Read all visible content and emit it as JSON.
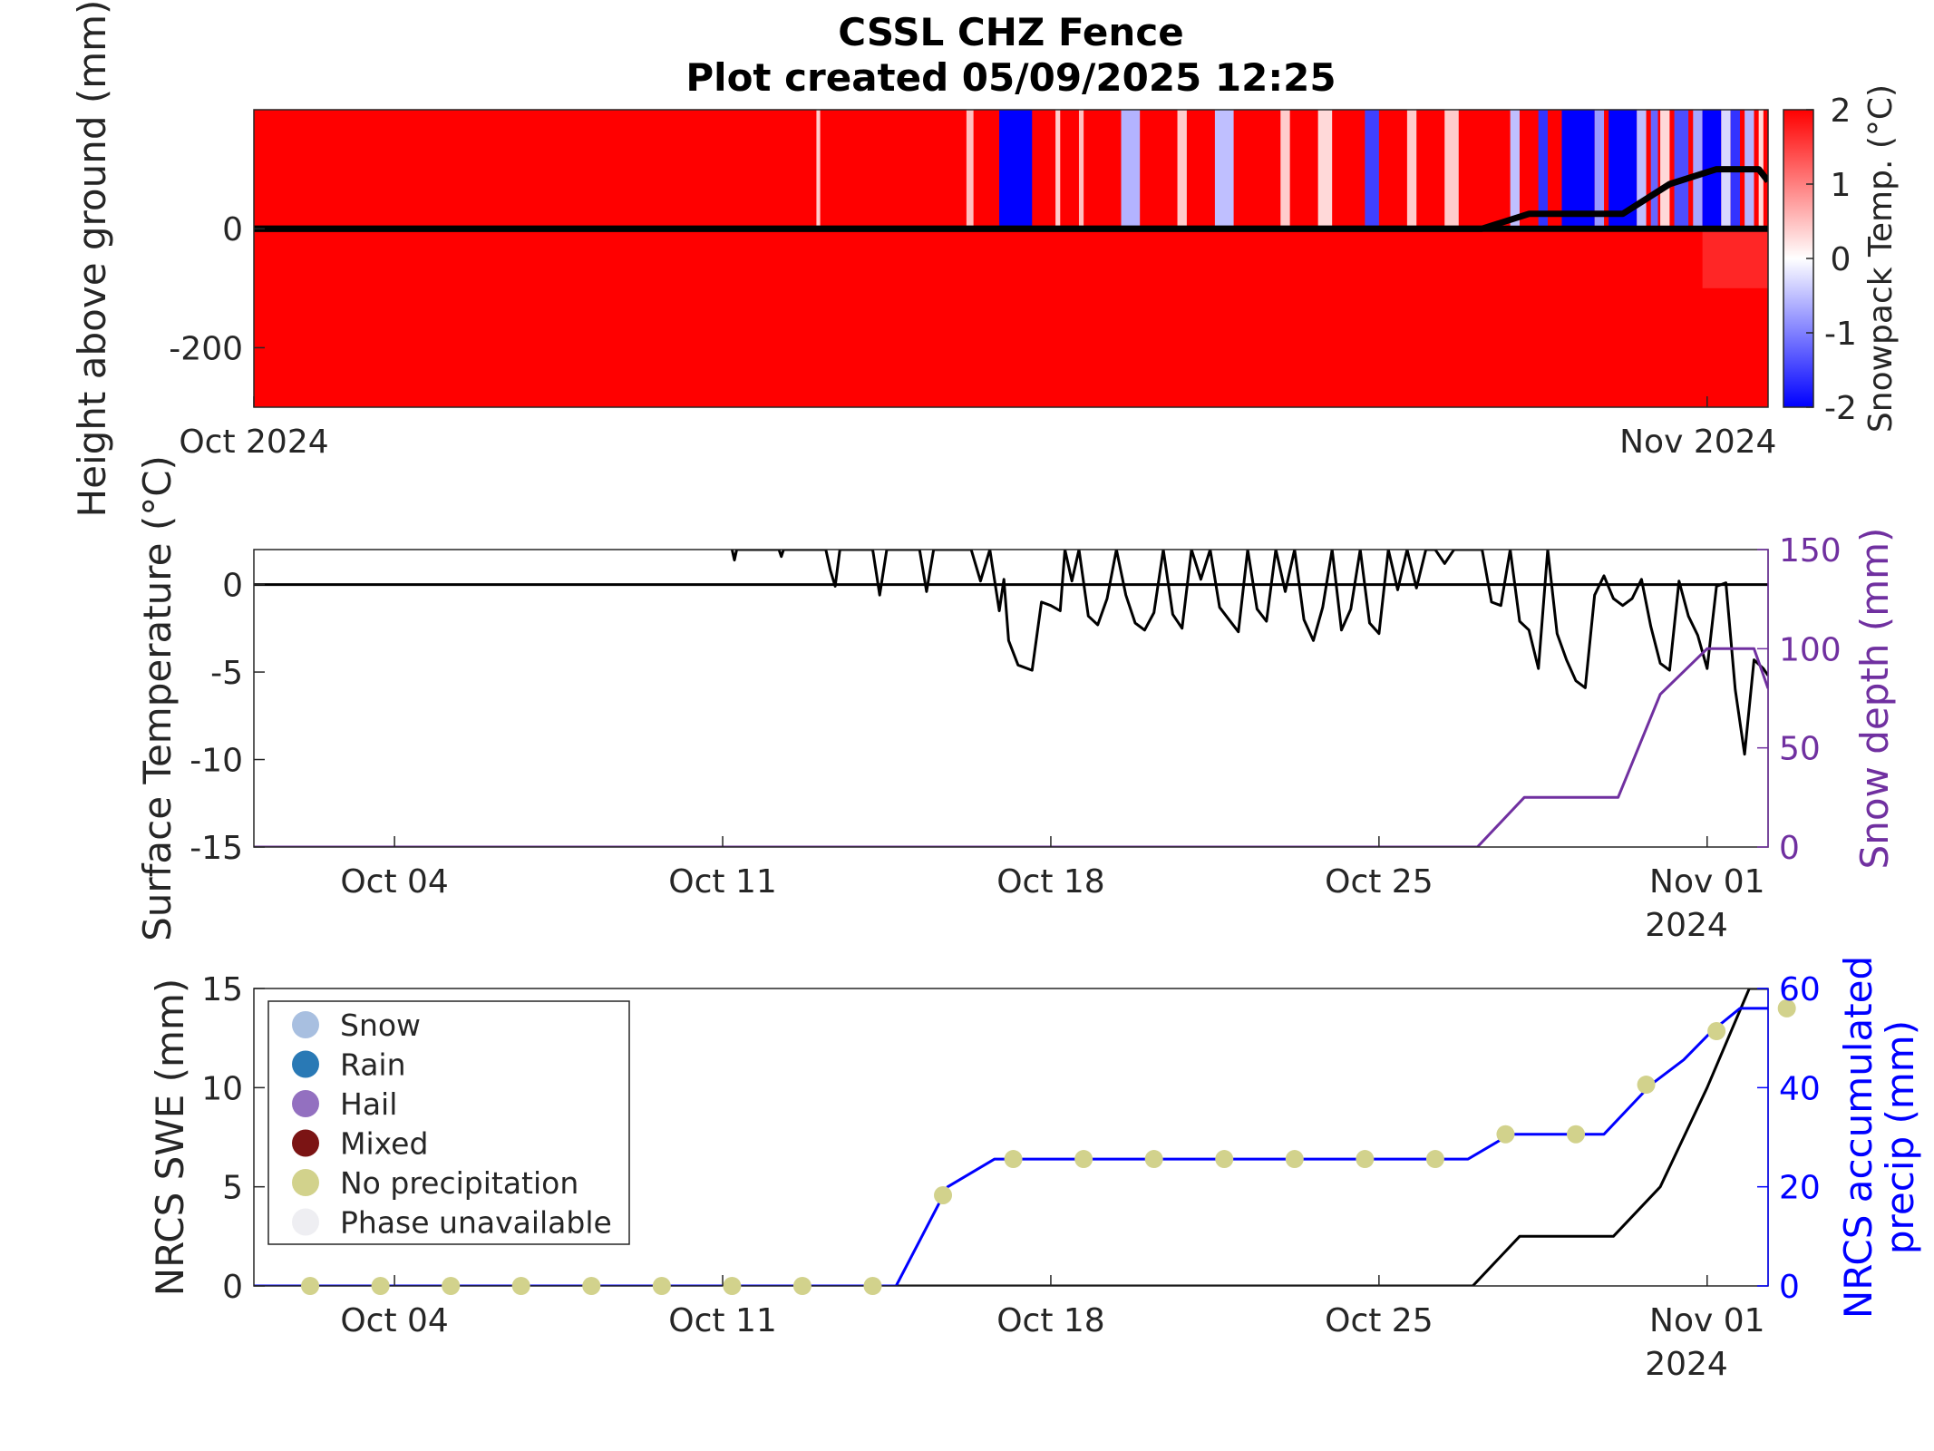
{
  "title": [
    "CSSL CHZ Fence",
    "Plot created 05/09/2025 12:25"
  ],
  "colors": {
    "warm": "#ff0000",
    "cold": "#0000ff",
    "surface_temp": "#000000",
    "snow_depth": "#7030a0",
    "precip": "#0000ff",
    "swe": "#000000",
    "no_precip_marker": "#d2d28c",
    "snow": "#a8bfe0",
    "rain": "#2979b5",
    "hail": "#9370c0",
    "mixed": "#7b1414",
    "phase_unavailable": "#eeeef2"
  },
  "chart_data": [
    {
      "type": "heatmap",
      "ylabel": "Height above ground (mm)",
      "colorbar_label": "Snowpack Temp. (°C)",
      "colorbar_ticks": [
        "2",
        "1",
        "0",
        "-1",
        "-2"
      ],
      "clim": [
        -2,
        2
      ],
      "colormap": [
        "#0000ff",
        "#ffffff",
        "#ff0000"
      ],
      "ylim": [
        -300,
        200
      ],
      "yticks": [
        {
          "v": 0,
          "label": "0"
        },
        {
          "v": -200,
          "label": "-200"
        }
      ],
      "xlim": [
        1,
        33.3
      ],
      "xticks": [
        {
          "v": 1,
          "label": "Oct 2024"
        },
        {
          "v": 32,
          "label": "Nov 2024"
        }
      ],
      "cold_bands": [
        {
          "x0": 13.0,
          "x1": 13.08,
          "t": 0.4
        },
        {
          "x0": 16.2,
          "x1": 16.35,
          "t": 0.5
        },
        {
          "x0": 16.9,
          "x1": 17.6,
          "t": -2
        },
        {
          "x0": 18.1,
          "x1": 18.2,
          "t": 0.4
        },
        {
          "x0": 18.6,
          "x1": 18.7,
          "t": 0.5
        },
        {
          "x0": 19.5,
          "x1": 19.9,
          "t": -0.6
        },
        {
          "x0": 20.7,
          "x1": 20.9,
          "t": 0.4
        },
        {
          "x0": 21.5,
          "x1": 21.9,
          "t": -0.5
        },
        {
          "x0": 22.9,
          "x1": 23.1,
          "t": 0.4
        },
        {
          "x0": 23.7,
          "x1": 24.0,
          "t": 0.3
        },
        {
          "x0": 24.7,
          "x1": 25.0,
          "t": -1.5
        },
        {
          "x0": 25.6,
          "x1": 25.8,
          "t": 0.4
        },
        {
          "x0": 26.4,
          "x1": 26.7,
          "t": 0.4
        },
        {
          "x0": 27.8,
          "x1": 28.0,
          "t": -0.5
        },
        {
          "x0": 28.4,
          "x1": 28.6,
          "t": -1.6
        },
        {
          "x0": 28.9,
          "x1": 29.6,
          "t": -2
        },
        {
          "x0": 29.6,
          "x1": 29.8,
          "t": -0.8
        },
        {
          "x0": 29.9,
          "x1": 30.5,
          "t": -2
        },
        {
          "x0": 30.5,
          "x1": 30.7,
          "t": -0.5
        },
        {
          "x0": 30.8,
          "x1": 30.95,
          "t": -1.2
        },
        {
          "x0": 31.0,
          "x1": 31.2,
          "t": 0.3
        },
        {
          "x0": 31.3,
          "x1": 31.6,
          "t": -1.4
        },
        {
          "x0": 31.7,
          "x1": 31.9,
          "t": -0.7
        },
        {
          "x0": 31.9,
          "x1": 32.3,
          "t": -2
        },
        {
          "x0": 32.3,
          "x1": 32.5,
          "t": -0.3
        },
        {
          "x0": 32.5,
          "x1": 32.7,
          "t": -1.6
        },
        {
          "x0": 32.8,
          "x1": 33.0,
          "t": -0.6
        },
        {
          "x0": 33.1,
          "x1": 33.2,
          "t": 0.3
        }
      ],
      "snow_depth_line": {
        "x": [
          1,
          27.2,
          28.2,
          30.2,
          31.2,
          32.2,
          33.1,
          33.3
        ],
        "y": [
          0,
          0,
          25,
          25,
          75,
          100,
          100,
          80
        ]
      }
    },
    {
      "type": "line",
      "ylabel": "Surface Temperature (°C)",
      "y2label": "Snow depth (mm)",
      "ylim": [
        -15,
        2
      ],
      "yticks": [
        "0",
        "-5",
        "-10",
        "-15"
      ],
      "y2lim": [
        0,
        150
      ],
      "y2ticks": [
        "150",
        "100",
        "50",
        "0"
      ],
      "xlim": [
        1,
        33.3
      ],
      "xticks": [
        {
          "v": 4,
          "label": "Oct 04"
        },
        {
          "v": 11,
          "label": "Oct 11"
        },
        {
          "v": 18,
          "label": "Oct 18"
        },
        {
          "v": 25,
          "label": "Oct 25"
        },
        {
          "v": 32,
          "label": "Nov 01"
        }
      ],
      "xtick_year": "2024",
      "series": [
        {
          "x": [
            11.2,
            11.25,
            11.3,
            12.2,
            12.25,
            12.3,
            13.2,
            13.3,
            13.4,
            13.5,
            14.2,
            14.35,
            14.5,
            15.2,
            15.35,
            15.5,
            16.3,
            16.5,
            16.7,
            16.9,
            17.0,
            17.1,
            17.3,
            17.6,
            17.8,
            18.0,
            18.2,
            18.3,
            18.45,
            18.6,
            18.8,
            19.0,
            19.2,
            19.4,
            19.6,
            19.8,
            20.0,
            20.2,
            20.4,
            20.6,
            20.8,
            21.0,
            21.2,
            21.4,
            21.6,
            21.8,
            22.0,
            22.2,
            22.4,
            22.6,
            22.8,
            23.0,
            23.2,
            23.4,
            23.6,
            23.8,
            24.0,
            24.2,
            24.4,
            24.6,
            24.8,
            25.0,
            25.2,
            25.4,
            25.6,
            25.8,
            26.0,
            26.2,
            26.4,
            26.6,
            26.8,
            27.0,
            27.2,
            27.4,
            27.6,
            27.8,
            28.0,
            28.2,
            28.4,
            28.6,
            28.8,
            29.0,
            29.2,
            29.4,
            29.6,
            29.8,
            30.0,
            30.2,
            30.4,
            30.6,
            30.8,
            31.0,
            31.2,
            31.4,
            31.6,
            31.8,
            32.0,
            32.2,
            32.4,
            32.6,
            32.8,
            33.0,
            33.2,
            33.3
          ],
          "y": [
            2,
            1.4,
            2,
            2,
            1.6,
            2,
            2,
            0.8,
            -0.1,
            2,
            2,
            -0.6,
            2,
            2,
            -0.4,
            2,
            2,
            0.2,
            2,
            -1.5,
            0.3,
            -3.2,
            -4.6,
            -4.9,
            -1.0,
            -1.2,
            -1.5,
            2,
            0.2,
            2,
            -1.8,
            -2.3,
            -0.8,
            2,
            -0.6,
            -2.2,
            -2.6,
            -1.6,
            2,
            -1.7,
            -2.5,
            2,
            0.3,
            2,
            -1.3,
            -2.0,
            -2.7,
            2,
            -1.4,
            -2.1,
            2,
            -0.4,
            2,
            -2.0,
            -3.2,
            -1.3,
            2,
            -2.6,
            -1.4,
            2,
            -2.2,
            -2.8,
            2,
            -0.3,
            2,
            -0.2,
            2,
            2,
            1.2,
            2,
            2,
            2,
            2,
            -1.0,
            -1.2,
            2,
            -2.1,
            -2.6,
            -4.8,
            2,
            -2.8,
            -4.3,
            -5.5,
            -5.9,
            -0.6,
            0.5,
            -0.8,
            -1.2,
            -0.8,
            0.3,
            -2.4,
            -4.5,
            -4.9,
            0.2,
            -1.8,
            -2.9,
            -4.8,
            -0.1,
            0.1,
            -6.0,
            -9.7,
            -4.3,
            -4.8,
            -5.2
          ]
        },
        {
          "axis": "right",
          "x": [
            1,
            27.1,
            28.1,
            30.1,
            31.0,
            32.0,
            33.0,
            33.3
          ],
          "y": [
            0,
            0,
            25,
            25,
            77,
            100,
            100,
            80
          ]
        }
      ]
    },
    {
      "type": "line",
      "ylabel": "NRCS SWE (mm)",
      "y2label": [
        "NRCS accumulated",
        "precip (mm)"
      ],
      "ylim": [
        0,
        15
      ],
      "yticks": [
        "15",
        "10",
        "5",
        "0"
      ],
      "y2lim": [
        0,
        60
      ],
      "y2ticks": [
        "60",
        "40",
        "20",
        "0"
      ],
      "xlim": [
        1,
        33.3
      ],
      "xticks": [
        {
          "v": 4,
          "label": "Oct 04"
        },
        {
          "v": 11,
          "label": "Oct 11"
        },
        {
          "v": 18,
          "label": "Oct 18"
        },
        {
          "v": 25,
          "label": "Oct 25"
        },
        {
          "v": 32,
          "label": "Nov 01"
        }
      ],
      "xtick_year": "2024",
      "legend": {
        "placement": "top-left",
        "entries": [
          "Snow",
          "Rain",
          "Hail",
          "Mixed",
          "No precipitation",
          "Phase unavailable"
        ],
        "colors": [
          "snow",
          "rain",
          "hail",
          "mixed",
          "no_precip_marker",
          "phase_unavailable"
        ]
      },
      "series": [
        {
          "x": [
            1,
            27.0,
            28.0,
            30.0,
            31.0,
            32.0,
            32.9,
            34.0
          ],
          "y": [
            0,
            0,
            2.5,
            2.5,
            5.0,
            10.0,
            15.0,
            15.0
          ]
        },
        {
          "axis": "right",
          "x": [
            1,
            14.7,
            15.8,
            16.8,
            26.9,
            27.8,
            29.8,
            30.8,
            31.5,
            32.1,
            32.7,
            33.4
          ],
          "y": [
            0,
            0,
            20,
            25.6,
            25.6,
            30.6,
            30.6,
            40.6,
            45.6,
            51.4,
            56.0,
            56.0
          ]
        },
        {
          "axis": "right",
          "marker": "no_precip_marker",
          "x": [
            2.2,
            3.7,
            5.2,
            6.7,
            8.2,
            9.7,
            11.2,
            12.7,
            14.2,
            15.7,
            17.2,
            18.7,
            20.2,
            21.7,
            23.2,
            24.7,
            26.2,
            27.7,
            29.2,
            30.7,
            32.2,
            33.7
          ],
          "y": [
            0,
            0,
            0,
            0,
            0,
            0,
            0,
            0,
            0,
            18.3,
            25.6,
            25.6,
            25.6,
            25.6,
            25.6,
            25.6,
            25.6,
            30.6,
            30.6,
            40.6,
            51.4,
            56.0
          ]
        }
      ]
    }
  ]
}
